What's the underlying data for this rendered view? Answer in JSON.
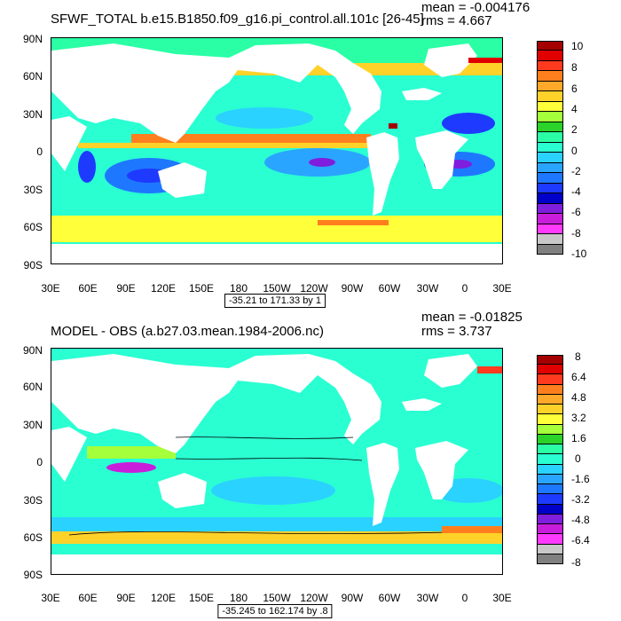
{
  "panels": [
    {
      "title": "SFWF_TOTAL b.e15.B1850.f09_g16.pi_control.all.101c [26-45]",
      "mean": "mean = -0.004176",
      "rms": "rms = 4.667",
      "contour_info": "-35.21 to 171.33 by 1",
      "colorbar_labels": [
        "10",
        "8",
        "6",
        "4",
        "2",
        "0",
        "-2",
        "-4",
        "-6",
        "-8",
        "-10"
      ],
      "colors": [
        "#a50000",
        "#e00000",
        "#ff3a1e",
        "#ff7f1e",
        "#ffa82a",
        "#ffd22a",
        "#ffff3a",
        "#a5ff3a",
        "#2ad22a",
        "#2affa5",
        "#2affd2",
        "#2ad2ff",
        "#2aa5ff",
        "#1e78ff",
        "#1e3aff",
        "#0000c8",
        "#7f1edc",
        "#c81edc",
        "#ff3aff",
        "#c8c8c8",
        "#808080"
      ]
    },
    {
      "title": "MODEL - OBS (a.b27.03.mean.1984-2006.nc)",
      "mean": "mean = -0.01825",
      "rms": "rms = 3.737",
      "contour_info": "-35.245 to 162.174 by .8",
      "colorbar_labels": [
        "8",
        "6.4",
        "4.8",
        "3.2",
        "1.6",
        "0",
        "-1.6",
        "-3.2",
        "-4.8",
        "-6.4",
        "-8"
      ],
      "colors": [
        "#a50000",
        "#e00000",
        "#ff3a1e",
        "#ff7f1e",
        "#ffa82a",
        "#ffd22a",
        "#ffff3a",
        "#a5ff3a",
        "#2ad22a",
        "#2affa5",
        "#2affd2",
        "#2ad2ff",
        "#2aa5ff",
        "#1e78ff",
        "#1e3aff",
        "#0000c8",
        "#7f1edc",
        "#c81edc",
        "#ff3aff",
        "#c8c8c8",
        "#808080"
      ]
    }
  ],
  "lat_labels": [
    "90N",
    "60N",
    "30N",
    "0",
    "30S",
    "60S",
    "90S"
  ],
  "lon_labels": [
    "30E",
    "60E",
    "90E",
    "120E",
    "150E",
    "180",
    "150W",
    "120W",
    "90W",
    "60W",
    "30W",
    "0",
    "30E"
  ],
  "icons": {
    "land": "land-mask",
    "ocean": "ocean-field"
  }
}
